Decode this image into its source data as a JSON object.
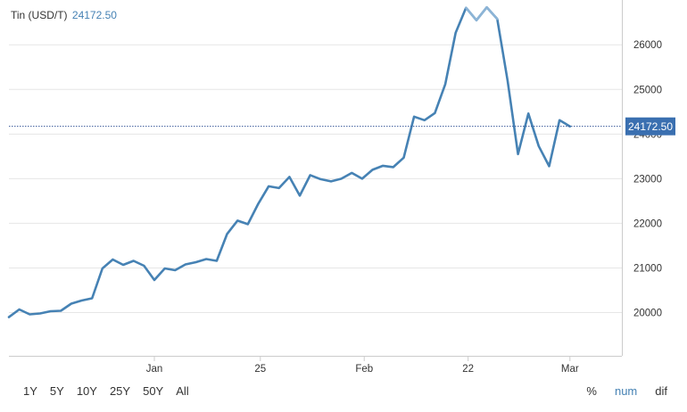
{
  "legend": {
    "name": "Tin (USD/T)",
    "value": "24172.50"
  },
  "ranges": [
    "1Y",
    "5Y",
    "10Y",
    "25Y",
    "50Y",
    "All"
  ],
  "modes": [
    {
      "label": "%",
      "active": false
    },
    {
      "label": "num",
      "active": true
    },
    {
      "label": "dif",
      "active": false
    }
  ],
  "chart_data": {
    "type": "line",
    "series": [
      {
        "values": [
          {
            "x": 0,
            "y": 19900
          },
          {
            "x": 1,
            "y": 20070
          },
          {
            "x": 2,
            "y": 19960
          },
          {
            "x": 3,
            "y": 19980
          },
          {
            "x": 4,
            "y": 20030
          },
          {
            "x": 5,
            "y": 20040
          },
          {
            "x": 6,
            "y": 20200
          },
          {
            "x": 7,
            "y": 20270
          },
          {
            "x": 8,
            "y": 20320
          },
          {
            "x": 9,
            "y": 20990
          },
          {
            "x": 10,
            "y": 21190
          },
          {
            "x": 11,
            "y": 21070
          },
          {
            "x": 12,
            "y": 21160
          },
          {
            "x": 13,
            "y": 21050
          },
          {
            "x": 14,
            "y": 20730
          },
          {
            "x": 15,
            "y": 20990
          },
          {
            "x": 16,
            "y": 20950
          },
          {
            "x": 17,
            "y": 21080
          },
          {
            "x": 18,
            "y": 21130
          },
          {
            "x": 19,
            "y": 21200
          },
          {
            "x": 20,
            "y": 21160
          },
          {
            "x": 21,
            "y": 21760
          },
          {
            "x": 22,
            "y": 22060
          },
          {
            "x": 23,
            "y": 21980
          },
          {
            "x": 24,
            "y": 22440
          },
          {
            "x": 25,
            "y": 22830
          },
          {
            "x": 26,
            "y": 22790
          },
          {
            "x": 27,
            "y": 23040
          },
          {
            "x": 28,
            "y": 22620
          },
          {
            "x": 29,
            "y": 23080
          },
          {
            "x": 30,
            "y": 22990
          },
          {
            "x": 31,
            "y": 22940
          },
          {
            "x": 32,
            "y": 23000
          },
          {
            "x": 33,
            "y": 23130
          },
          {
            "x": 34,
            "y": 23000
          },
          {
            "x": 35,
            "y": 23200
          },
          {
            "x": 36,
            "y": 23290
          },
          {
            "x": 37,
            "y": 23260
          },
          {
            "x": 38,
            "y": 23470
          },
          {
            "x": 39,
            "y": 24390
          },
          {
            "x": 40,
            "y": 24310
          },
          {
            "x": 41,
            "y": 24470
          },
          {
            "x": 42,
            "y": 25120
          },
          {
            "x": 43,
            "y": 26270
          },
          {
            "x": 44,
            "y": 26830
          },
          {
            "x": 45,
            "y": 26550
          },
          {
            "x": 46,
            "y": 26840
          },
          {
            "x": 47,
            "y": 26580
          },
          {
            "x": 48,
            "y": 25200
          },
          {
            "x": 49,
            "y": 23550
          },
          {
            "x": 50,
            "y": 24460
          },
          {
            "x": 51,
            "y": 23730
          },
          {
            "x": 52,
            "y": 23280
          },
          {
            "x": 53,
            "y": 24310
          },
          {
            "x": 54,
            "y": 24172.5
          }
        ]
      }
    ],
    "x_ticks": [
      {
        "x": 14,
        "label": "Jan"
      },
      {
        "x": 24.2,
        "label": "25"
      },
      {
        "x": 34.2,
        "label": "Feb"
      },
      {
        "x": 44.2,
        "label": "22"
      },
      {
        "x": 54,
        "label": "Mar"
      }
    ],
    "xlim": [
      0,
      59
    ],
    "y_ticks": [
      20000,
      21000,
      22000,
      23000,
      24000,
      25000,
      26000
    ],
    "ylim": [
      19032,
      27003
    ],
    "last_value": 24172.5,
    "last_value_label": "24172.50",
    "grid": true,
    "line_color": "#4682b4",
    "highlight_color": "#8cb4d6",
    "marker_color": "#3a6fb0"
  }
}
